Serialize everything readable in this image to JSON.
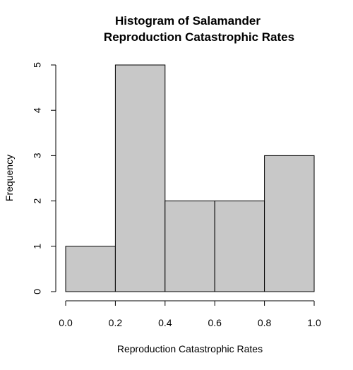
{
  "chart_data": {
    "type": "bar",
    "title_line1": "Histogram of Salamander",
    "title_line2": "Reproduction Catastrophic Rates",
    "xlabel": "Reproduction Catastrophic Rates",
    "ylabel": "Frequency",
    "bins": [
      {
        "start": 0.0,
        "end": 0.2,
        "count": 1
      },
      {
        "start": 0.2,
        "end": 0.4,
        "count": 5
      },
      {
        "start": 0.4,
        "end": 0.6,
        "count": 2
      },
      {
        "start": 0.6,
        "end": 0.8,
        "count": 2
      },
      {
        "start": 0.8,
        "end": 1.0,
        "count": 3
      }
    ],
    "xlim": [
      0.0,
      1.0
    ],
    "ylim": [
      0,
      5
    ],
    "xticks": [
      "0.0",
      "0.2",
      "0.4",
      "0.6",
      "0.8",
      "1.0"
    ],
    "yticks": [
      "0",
      "1",
      "2",
      "3",
      "4",
      "5"
    ],
    "bar_color": "#c8c8c8",
    "grid": false
  }
}
